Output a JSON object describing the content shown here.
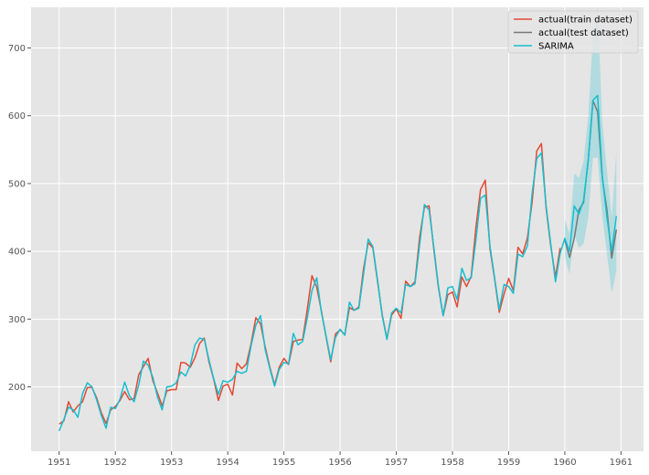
{
  "chart_data": {
    "type": "line",
    "title": "",
    "xlabel": "",
    "ylabel": "",
    "xlim": [
      1950.5,
      1961.4
    ],
    "ylim": [
      105,
      760
    ],
    "grid": true,
    "legend_placement": "top-right",
    "x_ticks": [
      1951,
      1952,
      1953,
      1954,
      1955,
      1956,
      1957,
      1958,
      1959,
      1960,
      1961
    ],
    "x_tick_labels": [
      "1951",
      "1952",
      "1953",
      "1954",
      "1955",
      "1956",
      "1957",
      "1958",
      "1959",
      "1960",
      "1961"
    ],
    "y_ticks": [
      200,
      300,
      400,
      500,
      600,
      700
    ],
    "y_tick_labels": [
      "200",
      "300",
      "400",
      "500",
      "600",
      "700"
    ],
    "series": [
      {
        "name": "actual(train dataset)",
        "color": "#E24A33",
        "x_start": "1951-01",
        "frequency": "monthly",
        "values": [
          145,
          150,
          178,
          163,
          172,
          178,
          199,
          199,
          184,
          162,
          146,
          166,
          171,
          180,
          193,
          181,
          183,
          218,
          230,
          242,
          209,
          191,
          172,
          194,
          196,
          196,
          236,
          235,
          229,
          243,
          264,
          272,
          237,
          211,
          180,
          201,
          204,
          188,
          235,
          227,
          234,
          264,
          302,
          293,
          259,
          229,
          203,
          229,
          242,
          233,
          267,
          269,
          270,
          315,
          364,
          347,
          312,
          274,
          237,
          278,
          284,
          277,
          317,
          313,
          318,
          374,
          413,
          405,
          355,
          306,
          271,
          306,
          315,
          301,
          356,
          348,
          355,
          422,
          465,
          467,
          404,
          347,
          305,
          336,
          340,
          318,
          362,
          348,
          363,
          435,
          491,
          505,
          404,
          359,
          310,
          337,
          360,
          342,
          406,
          396,
          420,
          472,
          548,
          559,
          463,
          407,
          362,
          405
        ]
      },
      {
        "name": "actual(test dataset)",
        "color": "#777777",
        "x_start": "1960-01",
        "frequency": "monthly",
        "values": [
          417,
          391,
          419,
          461,
          472,
          535,
          622,
          606,
          508,
          461,
          390,
          432
        ]
      },
      {
        "name": "SARIMA",
        "color": "#17BECF",
        "x_start": "1951-01",
        "frequency": "monthly",
        "values": [
          135,
          152,
          170,
          166,
          155,
          190,
          206,
          200,
          181,
          158,
          139,
          170,
          168,
          182,
          207,
          187,
          178,
          203,
          238,
          232,
          214,
          185,
          166,
          200,
          201,
          206,
          222,
          216,
          232,
          262,
          272,
          270,
          240,
          212,
          189,
          209,
          207,
          211,
          223,
          220,
          223,
          261,
          291,
          305,
          255,
          227,
          201,
          226,
          236,
          234,
          279,
          262,
          267,
          302,
          342,
          361,
          310,
          275,
          240,
          273,
          285,
          276,
          325,
          313,
          316,
          366,
          418,
          407,
          357,
          304,
          270,
          309,
          316,
          309,
          351,
          348,
          352,
          411,
          469,
          461,
          407,
          349,
          305,
          346,
          348,
          329,
          375,
          357,
          361,
          416,
          478,
          483,
          408,
          361,
          314,
          351,
          348,
          338,
          396,
          392,
          408,
          485,
          537,
          545,
          466,
          410,
          355,
          397,
          419,
          400,
          467,
          455,
          475,
          535,
          623,
          630,
          511,
          450,
          400,
          452
        ]
      }
    ],
    "confidence_band": {
      "series": "SARIMA",
      "color": "#17BECF",
      "x_start": "1960-01",
      "frequency": "monthly",
      "lower": [
        392,
        366,
        427,
        405,
        411,
        450,
        538,
        538,
        452,
        396,
        338,
        371
      ],
      "upper": [
        447,
        426,
        515,
        508,
        533,
        600,
        720,
        760,
        590,
        520,
        450,
        547
      ]
    }
  }
}
